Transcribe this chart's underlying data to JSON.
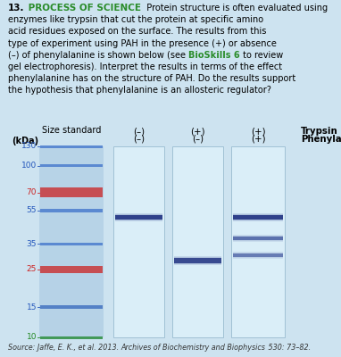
{
  "background_color": "#cde3f0",
  "std_lane_color": "#b0cfe6",
  "sample_lane_color": "#daeaf5",
  "sample_lane_border": "#99bbd0",
  "size_labels": [
    "130",
    "100",
    "70",
    "55",
    "35",
    "25",
    "15",
    "10"
  ],
  "size_colors": [
    "#2255bb",
    "#2255bb",
    "#cc2222",
    "#2255bb",
    "#2255bb",
    "#cc2222",
    "#2255bb",
    "#228822"
  ],
  "band_color_dark": "#1a2e7a",
  "band_color_mid": "#2a4499",
  "source_plain": "Source: Jaffe, E. K., et al. 2013. ",
  "source_italic": "Archives of Biochemistry and Biophysics",
  "source_end": " 530: 73–82."
}
